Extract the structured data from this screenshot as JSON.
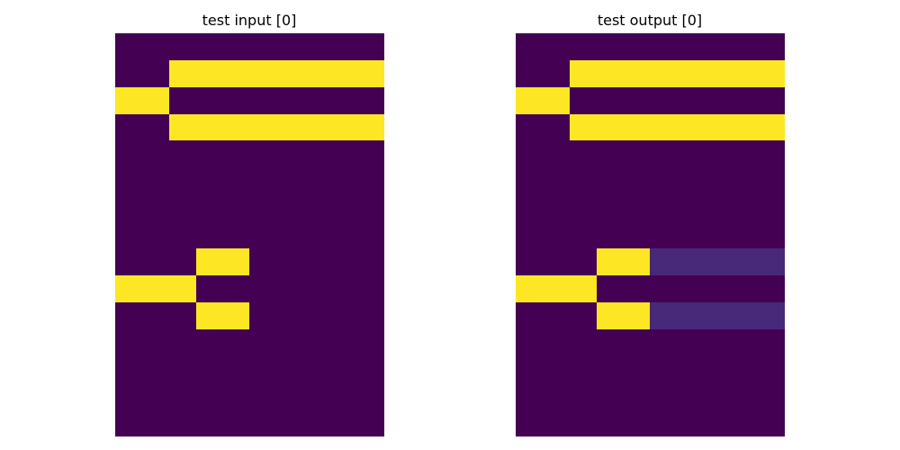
{
  "palette": {
    "0": "#440154",
    "1": "#fde725",
    "2": "#482878"
  },
  "panels": [
    {
      "title": "test input [0]",
      "rows": 15,
      "cols": 10,
      "grid": [
        [
          0,
          0,
          0,
          0,
          0,
          0,
          0,
          0,
          0,
          0
        ],
        [
          0,
          0,
          1,
          1,
          1,
          1,
          1,
          1,
          1,
          1
        ],
        [
          1,
          1,
          0,
          0,
          0,
          0,
          0,
          0,
          0,
          0
        ],
        [
          0,
          0,
          1,
          1,
          1,
          1,
          1,
          1,
          1,
          1
        ],
        [
          0,
          0,
          0,
          0,
          0,
          0,
          0,
          0,
          0,
          0
        ],
        [
          0,
          0,
          0,
          0,
          0,
          0,
          0,
          0,
          0,
          0
        ],
        [
          0,
          0,
          0,
          0,
          0,
          0,
          0,
          0,
          0,
          0
        ],
        [
          0,
          0,
          0,
          0,
          0,
          0,
          0,
          0,
          0,
          0
        ],
        [
          0,
          0,
          0,
          1,
          1,
          0,
          0,
          0,
          0,
          0
        ],
        [
          1,
          1,
          1,
          0,
          0,
          0,
          0,
          0,
          0,
          0
        ],
        [
          0,
          0,
          0,
          1,
          1,
          0,
          0,
          0,
          0,
          0
        ],
        [
          0,
          0,
          0,
          0,
          0,
          0,
          0,
          0,
          0,
          0
        ],
        [
          0,
          0,
          0,
          0,
          0,
          0,
          0,
          0,
          0,
          0
        ],
        [
          0,
          0,
          0,
          0,
          0,
          0,
          0,
          0,
          0,
          0
        ],
        [
          0,
          0,
          0,
          0,
          0,
          0,
          0,
          0,
          0,
          0
        ]
      ]
    },
    {
      "title": "test output [0]",
      "rows": 15,
      "cols": 10,
      "grid": [
        [
          0,
          0,
          0,
          0,
          0,
          0,
          0,
          0,
          0,
          0
        ],
        [
          0,
          0,
          1,
          1,
          1,
          1,
          1,
          1,
          1,
          1
        ],
        [
          1,
          1,
          0,
          0,
          0,
          0,
          0,
          0,
          0,
          0
        ],
        [
          0,
          0,
          1,
          1,
          1,
          1,
          1,
          1,
          1,
          1
        ],
        [
          0,
          0,
          0,
          0,
          0,
          0,
          0,
          0,
          0,
          0
        ],
        [
          0,
          0,
          0,
          0,
          0,
          0,
          0,
          0,
          0,
          0
        ],
        [
          0,
          0,
          0,
          0,
          0,
          0,
          0,
          0,
          0,
          0
        ],
        [
          0,
          0,
          0,
          0,
          0,
          0,
          0,
          0,
          0,
          0
        ],
        [
          0,
          0,
          0,
          1,
          1,
          2,
          2,
          2,
          2,
          2
        ],
        [
          1,
          1,
          1,
          0,
          0,
          0,
          0,
          0,
          0,
          0
        ],
        [
          0,
          0,
          0,
          1,
          1,
          2,
          2,
          2,
          2,
          2
        ],
        [
          0,
          0,
          0,
          0,
          0,
          0,
          0,
          0,
          0,
          0
        ],
        [
          0,
          0,
          0,
          0,
          0,
          0,
          0,
          0,
          0,
          0
        ],
        [
          0,
          0,
          0,
          0,
          0,
          0,
          0,
          0,
          0,
          0
        ],
        [
          0,
          0,
          0,
          0,
          0,
          0,
          0,
          0,
          0,
          0
        ]
      ]
    }
  ]
}
